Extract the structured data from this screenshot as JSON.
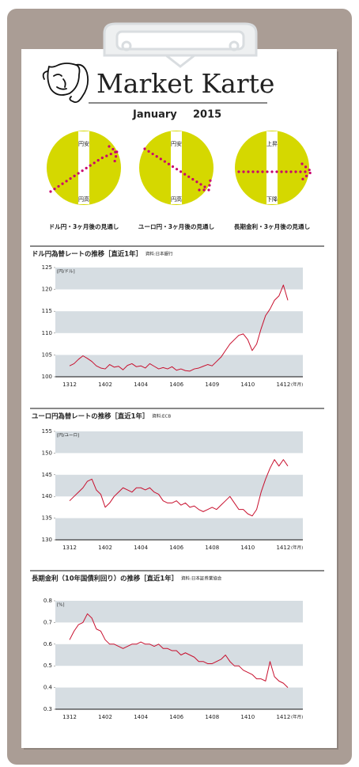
{
  "header": {
    "title": "Market Karte",
    "month": "January",
    "year": "2015"
  },
  "outlook": [
    {
      "top": "円安",
      "bottom": "円高",
      "caption": "ドル円・3ヶ月後の見通し"
    },
    {
      "top": "円安",
      "bottom": "円高",
      "caption": "ユーロ円・3ヶ月後の見通し"
    },
    {
      "top": "上昇",
      "bottom": "下降",
      "caption": "長期金利・3ヶ月後の見通し"
    }
  ],
  "chart_data": [
    {
      "type": "line",
      "title": "ドル円為替レートの推移［直近1年］",
      "source": "資料:日本銀行",
      "y_unit": "[円/ドル]",
      "x_unit": "(年月)",
      "categories": [
        "1312",
        null,
        null,
        null,
        null,
        null,
        null,
        null,
        "1402",
        null,
        null,
        null,
        null,
        null,
        null,
        null,
        "1404",
        null,
        null,
        null,
        null,
        null,
        null,
        null,
        "1406",
        null,
        null,
        null,
        null,
        null,
        null,
        null,
        "1409",
        null,
        null,
        null,
        null,
        null,
        null,
        null,
        "1410",
        null,
        null,
        null,
        null,
        null,
        null,
        null,
        "1412",
        null
      ],
      "values": [
        102.5,
        103,
        104,
        104.8,
        104.2,
        103.5,
        102.5,
        102,
        101.8,
        102.8,
        102.2,
        102.4,
        101.6,
        102.6,
        103,
        102.3,
        102.5,
        102,
        103,
        102.4,
        101.8,
        102.1,
        101.8,
        102.3,
        101.5,
        101.8,
        101.4,
        101.3,
        101.8,
        102,
        102.4,
        102.8,
        102.5,
        103.5,
        104.5,
        106,
        107.5,
        108.5,
        109.5,
        109.8,
        108.5,
        106,
        107.5,
        111,
        114,
        115.5,
        117.5,
        118.5,
        121,
        117.5
      ],
      "color": "#c8102e",
      "ylim": [
        100,
        125
      ],
      "yticks": [
        100,
        105,
        110,
        115,
        120,
        125
      ],
      "grid": true
    },
    {
      "type": "line",
      "title": "ユーロ円為替レートの推移［直近1年］",
      "source": "資料:ECB",
      "y_unit": "[円/ユーロ]",
      "x_unit": "(年月)",
      "categories": [
        "1312",
        null,
        null,
        null,
        null,
        null,
        null,
        null,
        "1402",
        null,
        null,
        null,
        null,
        null,
        null,
        null,
        "1404",
        null,
        null,
        null,
        null,
        null,
        null,
        null,
        "1406",
        null,
        null,
        null,
        null,
        null,
        null,
        null,
        "1408",
        null,
        null,
        null,
        null,
        null,
        null,
        null,
        "1410",
        null,
        null,
        null,
        null,
        null,
        null,
        null,
        "1412",
        null
      ],
      "values": [
        139,
        140,
        141,
        142,
        143.5,
        144,
        141.5,
        140.5,
        137.5,
        138.5,
        140,
        141,
        142,
        141.5,
        141,
        142,
        142,
        141.5,
        142,
        141,
        140.5,
        139,
        138.5,
        138.5,
        139,
        138,
        138.5,
        137.5,
        137.8,
        137,
        136.5,
        137,
        137.5,
        137,
        138,
        139,
        140,
        138.5,
        137,
        137,
        136,
        135.5,
        137,
        141,
        144,
        146.5,
        148.5,
        147,
        148.5,
        147
      ],
      "color": "#c8102e",
      "ylim": [
        130,
        155
      ],
      "yticks": [
        130,
        135,
        140,
        145,
        150,
        155
      ],
      "grid": true
    },
    {
      "type": "line",
      "title": "長期金利（10年国債利回り）の推移［直近1年］",
      "source": "資料:日本証券業協会",
      "y_unit": "[%]",
      "x_unit": "(年月)",
      "categories": [
        "1312",
        null,
        null,
        null,
        null,
        null,
        null,
        null,
        "1402",
        null,
        null,
        null,
        null,
        null,
        null,
        null,
        "1404",
        null,
        null,
        null,
        null,
        null,
        null,
        null,
        "1406",
        null,
        null,
        null,
        null,
        null,
        null,
        null,
        "1408",
        null,
        null,
        null,
        null,
        null,
        null,
        null,
        "1410",
        null,
        null,
        null,
        null,
        null,
        null,
        null,
        "1412",
        null
      ],
      "values": [
        0.62,
        0.66,
        0.69,
        0.7,
        0.74,
        0.72,
        0.67,
        0.66,
        0.62,
        0.6,
        0.6,
        0.59,
        0.58,
        0.59,
        0.6,
        0.6,
        0.61,
        0.6,
        0.6,
        0.59,
        0.6,
        0.58,
        0.58,
        0.57,
        0.57,
        0.55,
        0.56,
        0.55,
        0.54,
        0.52,
        0.52,
        0.51,
        0.51,
        0.52,
        0.53,
        0.55,
        0.52,
        0.5,
        0.5,
        0.48,
        0.47,
        0.46,
        0.44,
        0.44,
        0.43,
        0.52,
        0.45,
        0.43,
        0.42,
        0.4
      ],
      "color": "#c8102e",
      "ylim": [
        0.3,
        0.8
      ],
      "yticks": [
        0.3,
        0.4,
        0.5,
        0.6,
        0.7,
        0.8
      ],
      "grid": true
    }
  ]
}
